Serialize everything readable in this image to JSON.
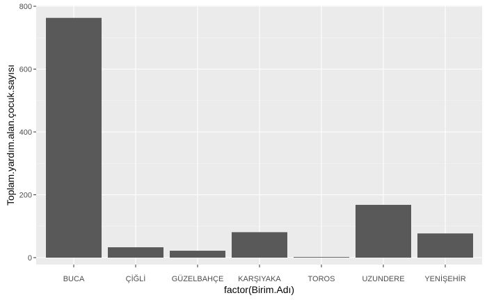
{
  "chart_data": {
    "type": "bar",
    "categories": [
      "BUCA",
      "ÇİĞLİ",
      "GÜZELBAHÇE",
      "KARŞIYAKA",
      "TOROS",
      "UZUNDERE",
      "YENİŞEHİR"
    ],
    "values": [
      763,
      33,
      22,
      81,
      2,
      168,
      77
    ],
    "xlabel": "factor(Birim.Adı)",
    "ylabel": "Toplam.yardım.alan.çocuk.sayısı",
    "ylim": [
      0,
      800
    ],
    "yticks": [
      0,
      200,
      400,
      600,
      800
    ],
    "grid": true,
    "legend": "none",
    "colors": {
      "panel": "#ebebeb",
      "grid_major": "#ffffff",
      "bar": "#595959",
      "tick_text": "#4d4d4d",
      "tick_mark": "#333333"
    }
  }
}
